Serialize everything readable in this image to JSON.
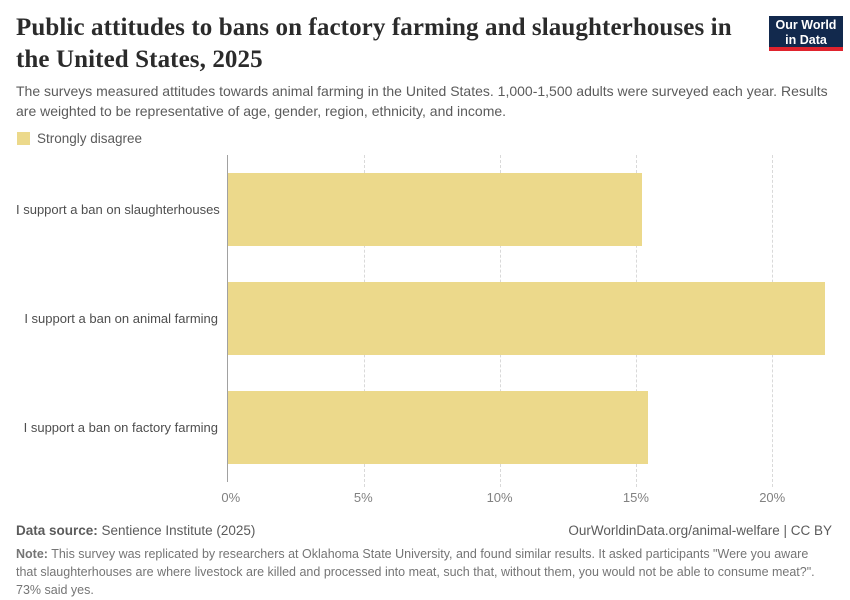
{
  "header": {
    "title": "Public attitudes to bans on factory farming and slaughterhouses in the United States, 2025",
    "subtitle": "The surveys measured attitudes towards animal farming in the United States. 1,000-1,500 adults were surveyed each year. Results are weighted to be representative of age, gender, region, ethnicity, and income.",
    "logo_line1": "Our World",
    "logo_line2": "in Data"
  },
  "legend": {
    "label": "Strongly disagree",
    "swatch_color": "#ecd98b"
  },
  "chart_data": {
    "type": "bar",
    "orientation": "horizontal",
    "title": "Public attitudes to bans on factory farming and slaughterhouses in the United States, 2025",
    "series_name": "Strongly disagree",
    "categories": [
      "I support a ban on slaughterhouses",
      "I support a ban on animal farming",
      "I support a ban on factory farming"
    ],
    "values": [
      15.2,
      21.9,
      15.4
    ],
    "value_unit": "%",
    "xlim": [
      0,
      21.9
    ],
    "x_ticks": [
      0,
      5,
      10,
      15,
      20
    ],
    "x_tick_labels": [
      "0%",
      "5%",
      "10%",
      "15%",
      "20%"
    ],
    "grid": "vertical-dashed",
    "bar_color": "#ecd98b",
    "legend_position": "top-left"
  },
  "footer": {
    "source_label": "Data source:",
    "source_value": " Sentience Institute (2025)",
    "rights": "OurWorldinData.org/animal-welfare | CC BY",
    "note_label": "Note:",
    "note_value": " This survey was replicated by researchers at Oklahoma State University, and found similar results. It asked participants \"Were you aware that slaughterhouses are where livestock are killed and processed into meat, such that, without them, you would not be able to consume meat?\". 73% said yes."
  },
  "colors": {
    "bar": "#ecd98b",
    "title_text": "#2b2b2b",
    "body_text": "#5b5b5b",
    "tick_text": "#818181",
    "gridline": "#d9d9d9",
    "axis_line": "#a1a1a1",
    "logo_bg": "#12294d",
    "logo_accent": "#e0232d"
  }
}
